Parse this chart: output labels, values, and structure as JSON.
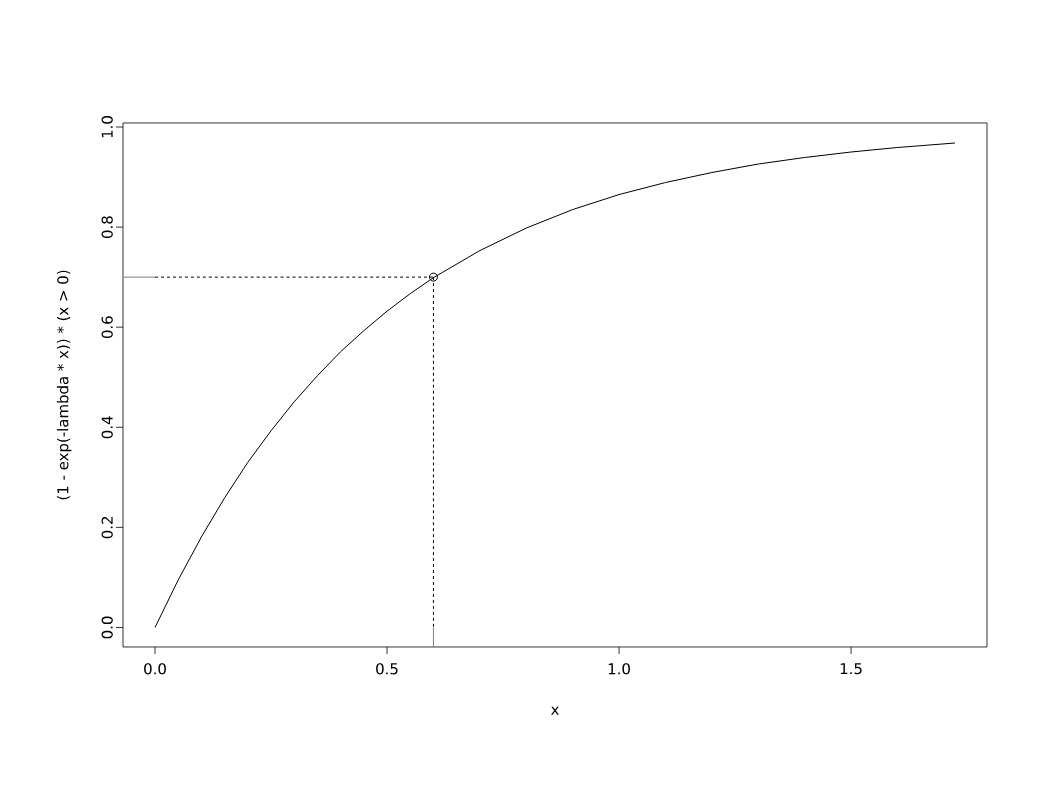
{
  "chart_data": {
    "type": "line",
    "xlabel": "x",
    "ylabel": "(1 - exp(-lambda * x)) * (x > 0)",
    "xlim": [
      -0.069,
      1.793
    ],
    "ylim": [
      -0.039,
      1.008
    ],
    "xticks": [
      {
        "value": 0,
        "label": "0.0"
      },
      {
        "value": 0.5,
        "label": "0.5"
      },
      {
        "value": 1,
        "label": "1.0"
      },
      {
        "value": 1.5,
        "label": "1.5"
      }
    ],
    "yticks": [
      {
        "value": 0,
        "label": "0.0"
      },
      {
        "value": 0.2,
        "label": "0.2"
      },
      {
        "value": 0.4,
        "label": "0.4"
      },
      {
        "value": 0.6,
        "label": "0.6"
      },
      {
        "value": 0.8,
        "label": "0.8"
      },
      {
        "value": 1,
        "label": "1.0"
      }
    ],
    "series": [
      {
        "color": "#000000",
        "line_style": "solid",
        "x": [
          0,
          0.05,
          0.1,
          0.15,
          0.2,
          0.25,
          0.3,
          0.35,
          0.4,
          0.45,
          0.5,
          0.55,
          0.6,
          0.7,
          0.8,
          0.9,
          1.0,
          1.1,
          1.2,
          1.3,
          1.4,
          1.5,
          1.6,
          1.724
        ],
        "values": [
          0,
          0.095,
          0.181,
          0.259,
          0.33,
          0.393,
          0.451,
          0.503,
          0.551,
          0.593,
          0.632,
          0.667,
          0.699,
          0.753,
          0.798,
          0.835,
          0.865,
          0.889,
          0.909,
          0.926,
          0.939,
          0.95,
          0.959,
          0.968
        ]
      },
      {
        "type": "line",
        "color": "#808080",
        "line_style": "solid",
        "x": [
          -0.069,
          0
        ],
        "values": [
          0.7,
          0.7
        ]
      },
      {
        "type": "line",
        "color": "#808080",
        "line_style": "solid",
        "x": [
          0.6,
          0.6
        ],
        "values": [
          -0.039,
          0
        ]
      },
      {
        "type": "line",
        "color": "#000000",
        "line_style": "dashed",
        "x": [
          0,
          0.6
        ],
        "values": [
          0.7,
          0.7
        ]
      },
      {
        "type": "line",
        "color": "#000000",
        "line_style": "dashed",
        "x": [
          0.6,
          0.6
        ],
        "values": [
          0.7,
          0
        ]
      },
      {
        "type": "scatter",
        "color": "#000000",
        "marker": "circle",
        "x": [
          0.6
        ],
        "values": [
          0.7
        ]
      }
    ]
  }
}
